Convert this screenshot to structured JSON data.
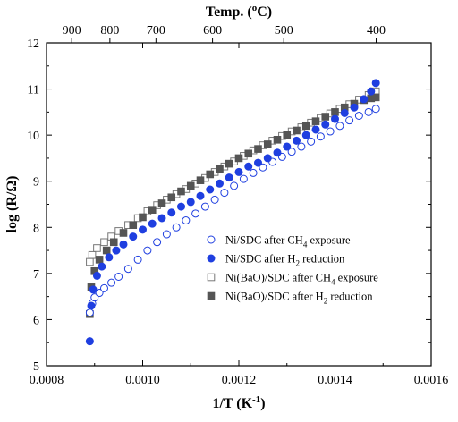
{
  "chart_data": {
    "type": "scatter",
    "title": "",
    "xlabel": {
      "base": "1/T (K",
      "sup": "-1",
      "tail": ")"
    },
    "ylabel": "log (R/Ω)",
    "top_axis_label": {
      "base": "Temp. (",
      "sup": "o",
      "tail": "C)"
    },
    "xlim": [
      0.0008,
      0.0016
    ],
    "ylim": [
      5,
      12
    ],
    "x_ticks": [
      0.0008,
      0.001,
      0.0012,
      0.0014,
      0.0016
    ],
    "x_tick_labels": [
      "0.0008",
      "0.0010",
      "0.0012",
      "0.0014",
      "0.0016"
    ],
    "y_ticks": [
      5,
      6,
      7,
      8,
      9,
      10,
      11,
      12
    ],
    "y_tick_labels": [
      "5",
      "6",
      "7",
      "8",
      "9",
      "10",
      "11",
      "12"
    ],
    "top_ticks_celsius": [
      900,
      800,
      700,
      600,
      500,
      400
    ],
    "top_tick_labels": [
      "900",
      "800",
      "700",
      "600",
      "500",
      "400"
    ],
    "grid": false,
    "legend_position": "lower-right",
    "series": [
      {
        "name": "Ni/SDC after CH4 exposure",
        "legend": {
          "pre": "Ni/SDC after CH",
          "sub": "4",
          "post": " exposure"
        },
        "marker": "circle-open",
        "color": "#1f3fe0",
        "x": [
          0.00089,
          0.000895,
          0.0009,
          0.00091,
          0.00092,
          0.000935,
          0.00095,
          0.00097,
          0.00099,
          0.00101,
          0.00103,
          0.00105,
          0.00107,
          0.00109,
          0.00111,
          0.00113,
          0.00115,
          0.00117,
          0.00119,
          0.00121,
          0.00123,
          0.00125,
          0.00127,
          0.00129,
          0.00131,
          0.00133,
          0.00135,
          0.00137,
          0.00139,
          0.00141,
          0.00143,
          0.00145,
          0.00147,
          0.001485
        ],
        "y": [
          6.15,
          6.35,
          6.48,
          6.58,
          6.68,
          6.8,
          6.93,
          7.1,
          7.3,
          7.5,
          7.68,
          7.85,
          8.0,
          8.15,
          8.3,
          8.45,
          8.6,
          8.75,
          8.9,
          9.05,
          9.18,
          9.3,
          9.42,
          9.53,
          9.64,
          9.75,
          9.86,
          9.97,
          10.08,
          10.2,
          10.32,
          10.42,
          10.5,
          10.57
        ]
      },
      {
        "name": "Ni/SDC after H2 reduction",
        "legend": {
          "pre": "Ni/SDC after H",
          "sub": "2",
          "post": " reduction"
        },
        "marker": "circle-filled",
        "color": "#1f3fe0",
        "x": [
          0.00089,
          0.000893,
          0.000897,
          0.000905,
          0.000915,
          0.00093,
          0.000945,
          0.00096,
          0.00098,
          0.001,
          0.00102,
          0.00104,
          0.00106,
          0.00108,
          0.0011,
          0.00112,
          0.00114,
          0.00116,
          0.00118,
          0.0012,
          0.00122,
          0.00124,
          0.00126,
          0.00128,
          0.0013,
          0.00132,
          0.00134,
          0.00136,
          0.00138,
          0.0014,
          0.00142,
          0.00144,
          0.00146,
          0.001475,
          0.001485
        ],
        "y": [
          5.53,
          6.3,
          6.65,
          6.95,
          7.15,
          7.35,
          7.5,
          7.63,
          7.8,
          7.95,
          8.08,
          8.2,
          8.32,
          8.45,
          8.55,
          8.68,
          8.82,
          8.95,
          9.08,
          9.2,
          9.32,
          9.4,
          9.5,
          9.62,
          9.75,
          9.88,
          10.0,
          10.12,
          10.23,
          10.35,
          10.48,
          10.6,
          10.78,
          10.95,
          11.13
        ]
      },
      {
        "name": "Ni(BaO)/SDC after CH4 exposure",
        "legend": {
          "pre": "Ni(BaO)/SDC after CH",
          "sub": "4",
          "post": " exposure"
        },
        "marker": "square-open",
        "color": "#555555",
        "x": [
          0.00089,
          0.000895,
          0.000905,
          0.00092,
          0.000935,
          0.00095,
          0.00097,
          0.00099,
          0.00101,
          0.00103,
          0.00105,
          0.00107,
          0.00109,
          0.00111,
          0.00113,
          0.00115,
          0.00117,
          0.00119,
          0.00121,
          0.00123,
          0.00125,
          0.00127,
          0.00129,
          0.00131,
          0.00133,
          0.00135,
          0.00137,
          0.00139,
          0.00141,
          0.00143,
          0.00145,
          0.00147,
          0.001485
        ],
        "y": [
          7.25,
          7.4,
          7.55,
          7.68,
          7.8,
          7.92,
          8.05,
          8.2,
          8.35,
          8.48,
          8.6,
          8.72,
          8.83,
          8.95,
          9.07,
          9.2,
          9.32,
          9.43,
          9.55,
          9.67,
          9.78,
          9.88,
          9.98,
          10.08,
          10.17,
          10.27,
          10.37,
          10.47,
          10.57,
          10.67,
          10.77,
          10.87,
          10.95
        ]
      },
      {
        "name": "Ni(BaO)/SDC after H2 reduction",
        "legend": {
          "pre": "Ni(BaO)/SDC after H",
          "sub": "2",
          "post": " reduction"
        },
        "marker": "square-filled",
        "color": "#555555",
        "x": [
          0.00089,
          0.000893,
          0.0009,
          0.00091,
          0.000925,
          0.00094,
          0.00096,
          0.00098,
          0.001,
          0.00102,
          0.00104,
          0.00106,
          0.00108,
          0.0011,
          0.00112,
          0.00114,
          0.00116,
          0.00118,
          0.0012,
          0.00122,
          0.00124,
          0.00126,
          0.00128,
          0.0013,
          0.00132,
          0.00134,
          0.00136,
          0.00138,
          0.0014,
          0.00142,
          0.00144,
          0.00146,
          0.001475,
          0.001485
        ],
        "y": [
          6.12,
          6.7,
          7.05,
          7.3,
          7.5,
          7.68,
          7.88,
          8.05,
          8.22,
          8.38,
          8.52,
          8.65,
          8.78,
          8.9,
          9.02,
          9.15,
          9.27,
          9.38,
          9.5,
          9.6,
          9.7,
          9.8,
          9.9,
          10.0,
          10.1,
          10.2,
          10.3,
          10.4,
          10.5,
          10.6,
          10.68,
          10.76,
          10.8,
          10.82
        ]
      }
    ]
  }
}
